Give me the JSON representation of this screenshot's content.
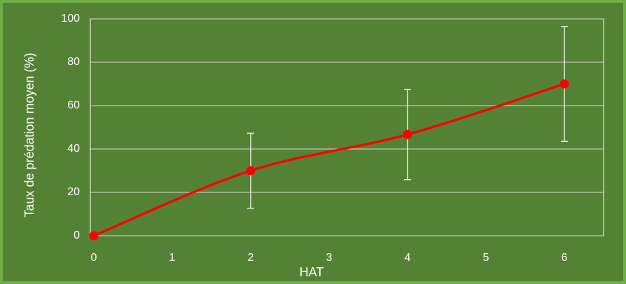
{
  "chart_data": {
    "type": "line",
    "x_label": "HAT",
    "y_label": "Taux de prédation moyen (%)",
    "x": [
      0,
      2,
      4,
      6
    ],
    "series": [
      {
        "name": "Taux de prédation moyen",
        "color": "#ff0000",
        "values": [
          0,
          30,
          46.7,
          70
        ],
        "errors": [
          0,
          17.3,
          20.8,
          26.5
        ]
      }
    ],
    "xlim": [
      0,
      6.5
    ],
    "xticks": [
      0,
      1,
      2,
      3,
      4,
      5,
      6
    ],
    "ylim": [
      0,
      100
    ],
    "yticks": [
      0,
      20,
      40,
      60,
      80,
      100
    ],
    "grid": true,
    "smooth": true
  }
}
